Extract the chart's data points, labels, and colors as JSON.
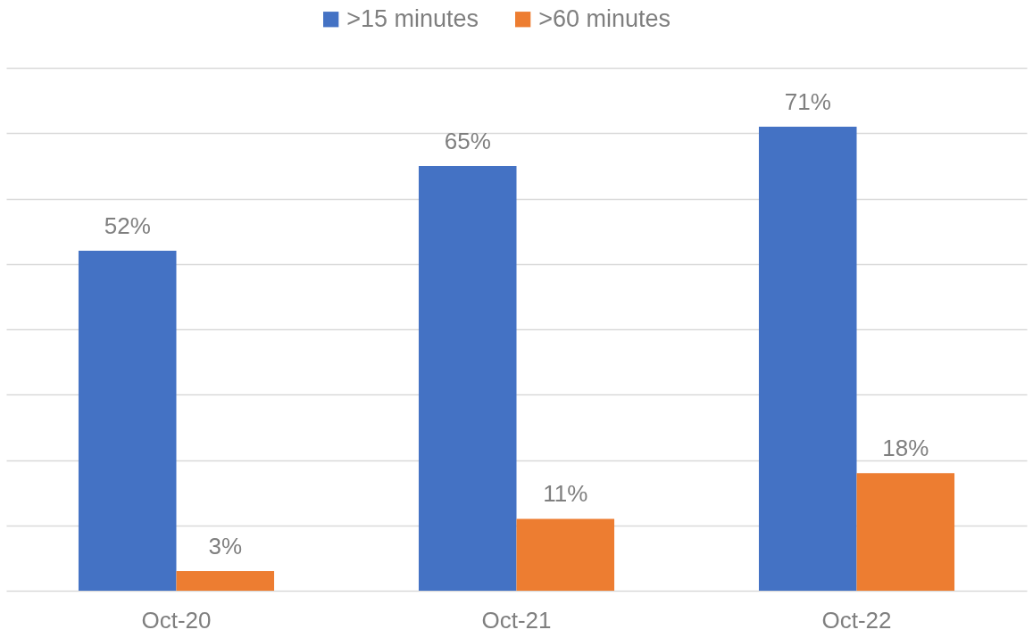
{
  "chart_data": {
    "type": "bar",
    "categories": [
      "Oct-20",
      "Oct-21",
      "Oct-22"
    ],
    "series": [
      {
        "name": ">15 minutes",
        "color": "#4472c4",
        "values": [
          52,
          65,
          71
        ],
        "value_labels": [
          "52%",
          "65%",
          "71%"
        ]
      },
      {
        "name": ">60 minutes",
        "color": "#ed7d31",
        "values": [
          3,
          11,
          18
        ],
        "value_labels": [
          "3%",
          "11%",
          "18%"
        ]
      }
    ],
    "ylim": [
      0,
      80
    ],
    "yticks": [
      {
        "value": 0,
        "label": null
      },
      {
        "value": 10,
        "label": null
      },
      {
        "value": 20,
        "label": null
      },
      {
        "value": 30,
        "label": null
      },
      {
        "value": 40,
        "label": null
      },
      {
        "value": 50,
        "label": null
      },
      {
        "value": 60,
        "label": null
      },
      {
        "value": 70,
        "label": null
      },
      {
        "value": 80,
        "label": null
      }
    ],
    "grid": "y",
    "legend": "top",
    "tick_labels": "x"
  }
}
